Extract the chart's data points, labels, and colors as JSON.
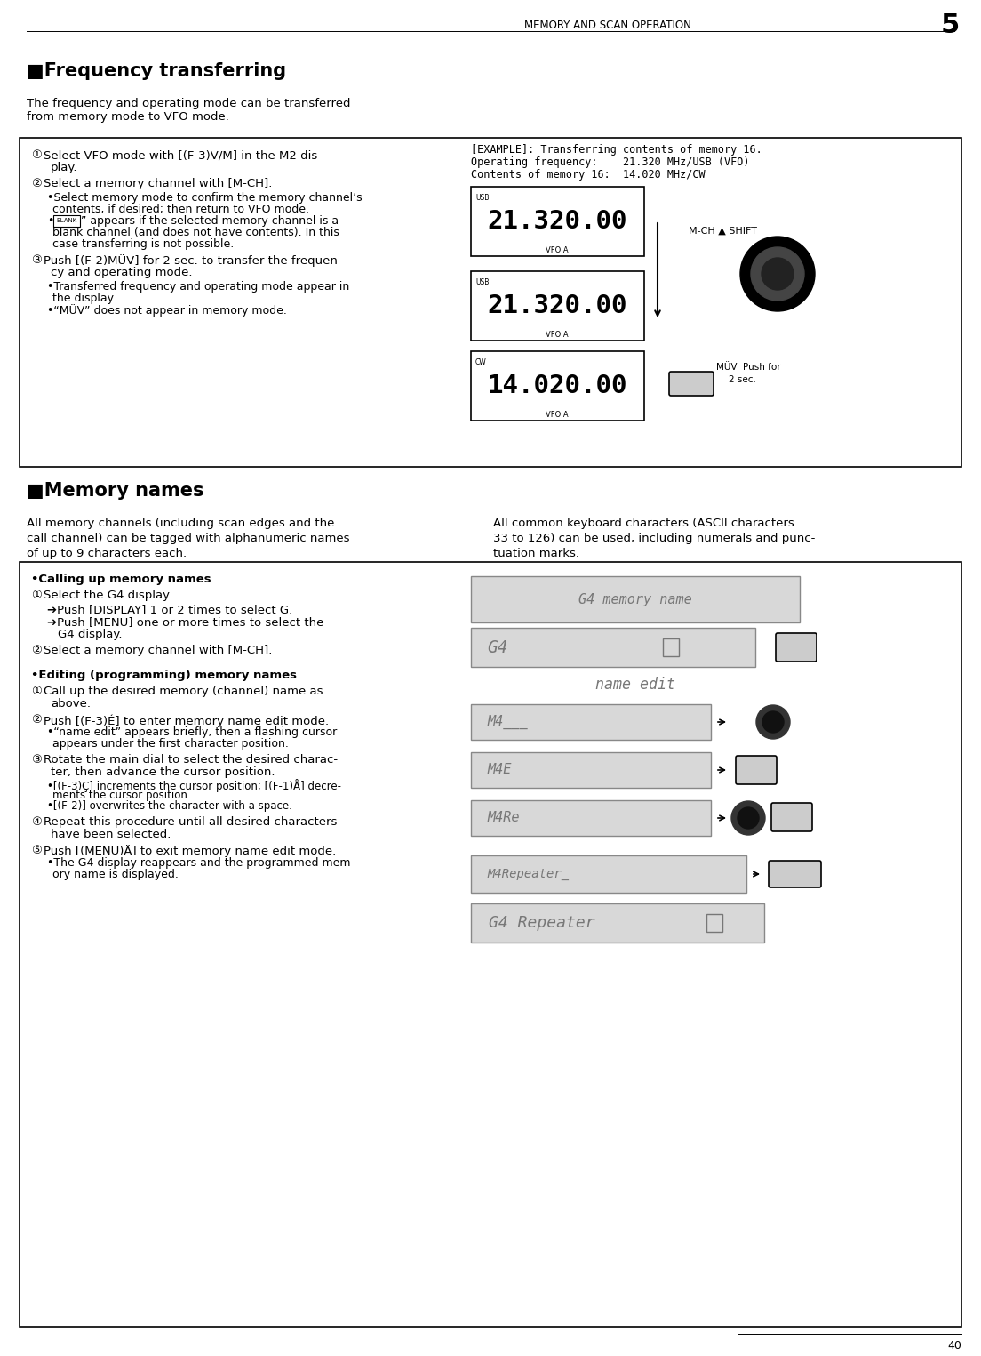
{
  "page_title": "MEMORY AND SCAN OPERATION",
  "page_number": "5",
  "footer_number": "40",
  "background_color": "#ffffff",
  "text_color": "#000000",
  "section1_title": "■Frequency transferring",
  "section1_intro": "The frequency and operating mode can be transferred\nfrom memory mode to VFO mode.",
  "section2_title": "■Memory names",
  "section2_intro_left": "All memory channels (including scan edges and the\ncall channel) can be tagged with alphanumeric names\nof up to 9 characters each.",
  "section2_intro_right": "All common keyboard characters (ASCII characters\n33 to 126) can be used, including numerals and punc-\ntuation marks."
}
